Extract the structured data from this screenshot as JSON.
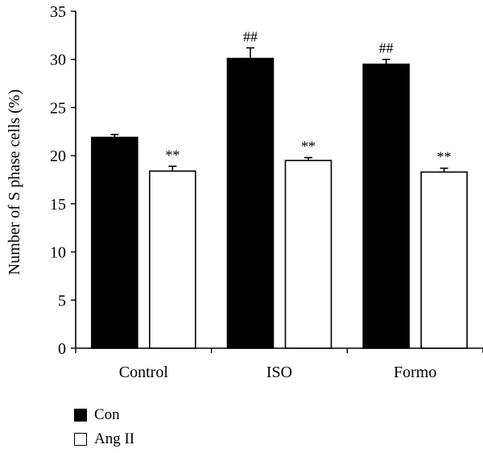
{
  "chart_data": {
    "type": "bar",
    "ylabel": "Number of S phase cells (%)",
    "xlabel": "",
    "ylim": [
      0,
      35
    ],
    "yticks": [
      "0",
      "5",
      "10",
      "15",
      "20",
      "25",
      "30",
      "35"
    ],
    "categories": [
      "Control",
      "ISO",
      "Formo"
    ],
    "series": [
      {
        "name": "Con",
        "color": "#000000",
        "values": [
          21.9,
          30.1,
          29.5
        ],
        "errors": [
          0.3,
          1.1,
          0.5
        ],
        "annotations": [
          "",
          "##",
          "##"
        ]
      },
      {
        "name": "Ang II",
        "color": "#ffffff",
        "values": [
          18.4,
          19.5,
          18.3
        ],
        "errors": [
          0.5,
          0.3,
          0.4
        ],
        "annotations": [
          "**",
          "**",
          "**"
        ]
      }
    ],
    "grid": false,
    "legend": "bottom-left"
  }
}
